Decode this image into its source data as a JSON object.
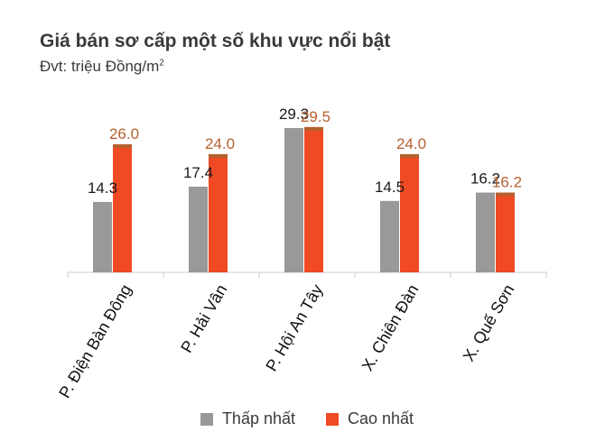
{
  "title": "Giá bán sơ cấp một số khu vực nổi bật",
  "unit_label": "Đvt: triệu Đồng/m",
  "unit_sup": "2",
  "colors": {
    "min": "#999999",
    "max": "#f04a24",
    "max_cap": "#b5602e",
    "value_min": "#1a1a1a",
    "value_max": "#b5602e",
    "axis": "#cccccc"
  },
  "chart_data": {
    "type": "bar",
    "categories": [
      "P. Điện Bàn Đông",
      "P. Hải Vân",
      "P. Hội An Tây",
      "X. Chiên Đàn",
      "X. Quế Sơn"
    ],
    "series": [
      {
        "name": "Thấp nhất",
        "values": [
          14.3,
          17.4,
          29.3,
          14.5,
          16.2
        ]
      },
      {
        "name": "Cao nhất",
        "values": [
          26.0,
          24.0,
          29.5,
          24.0,
          16.2
        ]
      }
    ],
    "value_labels": {
      "min": [
        "14.3",
        "17.4",
        "29.3",
        "14.5",
        "16.2"
      ],
      "max": [
        "26.0",
        "24.0",
        "29.5",
        "24.0",
        "16.2"
      ]
    },
    "ylim": [
      0,
      30
    ],
    "grid": false,
    "legend_position": "bottom-center"
  }
}
